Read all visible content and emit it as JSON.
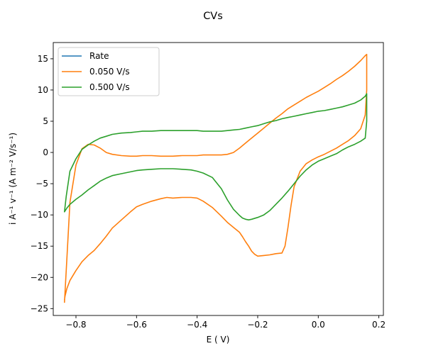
{
  "chart_data": {
    "type": "line",
    "title": "CVs",
    "xlabel": "E ( V)",
    "ylabel": "i A⁻¹ v⁻¹ (A m⁻² V/s⁻¹)",
    "xlim": [
      -0.875,
      0.215
    ],
    "ylim": [
      -26.1,
      17.6
    ],
    "x_ticks": [
      -0.8,
      -0.6,
      -0.4,
      -0.2,
      0.0,
      0.2
    ],
    "x_tick_labels": [
      "−0.8",
      "−0.6",
      "−0.4",
      "−0.2",
      "0.0",
      "0.2"
    ],
    "y_ticks": [
      -25,
      -20,
      -15,
      -10,
      -5,
      0,
      5,
      10,
      15
    ],
    "y_tick_labels": [
      "−25",
      "−20",
      "−15",
      "−10",
      "−5",
      "0",
      "5",
      "10",
      "15"
    ],
    "grid": false,
    "legend_position": "top-left",
    "series": [
      {
        "name": "Rate",
        "color": "#1f77b4",
        "x": [],
        "y": []
      },
      {
        "name": "0.050 V/s",
        "color": "#ff7f0e",
        "x": [
          -0.838,
          -0.83,
          -0.82,
          -0.8,
          -0.78,
          -0.76,
          -0.74,
          -0.72,
          -0.7,
          -0.68,
          -0.65,
          -0.62,
          -0.6,
          -0.58,
          -0.55,
          -0.52,
          -0.5,
          -0.48,
          -0.45,
          -0.42,
          -0.4,
          -0.38,
          -0.35,
          -0.32,
          -0.3,
          -0.28,
          -0.26,
          -0.24,
          -0.22,
          -0.2,
          -0.18,
          -0.16,
          -0.14,
          -0.12,
          -0.1,
          -0.08,
          -0.06,
          -0.04,
          -0.02,
          0.0,
          0.02,
          0.04,
          0.06,
          0.08,
          0.1,
          0.12,
          0.14,
          0.155,
          0.16,
          0.16,
          0.155,
          0.14,
          0.12,
          0.1,
          0.08,
          0.06,
          0.04,
          0.02,
          0.0,
          -0.02,
          -0.04,
          -0.06,
          -0.08,
          -0.09,
          -0.1,
          -0.11,
          -0.12,
          -0.14,
          -0.16,
          -0.18,
          -0.2,
          -0.21,
          -0.22,
          -0.23,
          -0.24,
          -0.25,
          -0.26,
          -0.28,
          -0.3,
          -0.32,
          -0.35,
          -0.38,
          -0.4,
          -0.42,
          -0.45,
          -0.48,
          -0.5,
          -0.52,
          -0.55,
          -0.58,
          -0.6,
          -0.62,
          -0.65,
          -0.68,
          -0.7,
          -0.72,
          -0.74,
          -0.76,
          -0.78,
          -0.8,
          -0.82,
          -0.83,
          -0.836,
          -0.838
        ],
        "y": [
          -24.0,
          -17.0,
          -8.0,
          -2.0,
          0.6,
          1.3,
          1.2,
          0.7,
          0.0,
          -0.3,
          -0.5,
          -0.6,
          -0.6,
          -0.5,
          -0.5,
          -0.6,
          -0.6,
          -0.6,
          -0.5,
          -0.5,
          -0.5,
          -0.4,
          -0.4,
          -0.4,
          -0.3,
          0.0,
          0.7,
          1.5,
          2.3,
          3.1,
          3.9,
          4.7,
          5.5,
          6.2,
          7.0,
          7.6,
          8.2,
          8.8,
          9.3,
          9.8,
          10.4,
          11.0,
          11.7,
          12.3,
          13.0,
          13.8,
          14.7,
          15.5,
          15.7,
          10.0,
          6.0,
          3.8,
          2.7,
          1.9,
          1.3,
          0.7,
          0.2,
          -0.3,
          -0.7,
          -1.2,
          -1.8,
          -3.0,
          -5.5,
          -8.5,
          -12.0,
          -15.0,
          -16.1,
          -16.2,
          -16.4,
          -16.5,
          -16.6,
          -16.3,
          -15.8,
          -15.0,
          -14.3,
          -13.5,
          -12.8,
          -12.0,
          -11.2,
          -10.2,
          -8.8,
          -7.8,
          -7.3,
          -7.2,
          -7.2,
          -7.3,
          -7.2,
          -7.4,
          -7.8,
          -8.3,
          -8.7,
          -9.5,
          -10.8,
          -12.1,
          -13.4,
          -14.6,
          -15.7,
          -16.5,
          -17.5,
          -18.9,
          -20.5,
          -21.8,
          -23.0,
          -23.6
        ]
      },
      {
        "name": "0.500 V/s",
        "color": "#2ca02c",
        "x": [
          -0.838,
          -0.832,
          -0.82,
          -0.8,
          -0.78,
          -0.76,
          -0.74,
          -0.72,
          -0.7,
          -0.68,
          -0.65,
          -0.62,
          -0.6,
          -0.58,
          -0.55,
          -0.52,
          -0.5,
          -0.48,
          -0.45,
          -0.42,
          -0.4,
          -0.38,
          -0.35,
          -0.32,
          -0.3,
          -0.28,
          -0.26,
          -0.24,
          -0.22,
          -0.2,
          -0.18,
          -0.16,
          -0.14,
          -0.12,
          -0.1,
          -0.08,
          -0.06,
          -0.04,
          -0.02,
          0.0,
          0.02,
          0.04,
          0.06,
          0.08,
          0.1,
          0.12,
          0.14,
          0.155,
          0.16,
          0.16,
          0.155,
          0.14,
          0.12,
          0.1,
          0.08,
          0.06,
          0.04,
          0.02,
          0.0,
          -0.02,
          -0.04,
          -0.06,
          -0.08,
          -0.1,
          -0.12,
          -0.14,
          -0.16,
          -0.18,
          -0.2,
          -0.22,
          -0.23,
          -0.24,
          -0.25,
          -0.26,
          -0.28,
          -0.3,
          -0.32,
          -0.35,
          -0.38,
          -0.4,
          -0.42,
          -0.45,
          -0.48,
          -0.5,
          -0.52,
          -0.55,
          -0.58,
          -0.6,
          -0.62,
          -0.65,
          -0.68,
          -0.7,
          -0.72,
          -0.74,
          -0.76,
          -0.78,
          -0.8,
          -0.82,
          -0.83,
          -0.838
        ],
        "y": [
          -9.5,
          -7.0,
          -3.0,
          -1.0,
          0.5,
          1.2,
          1.8,
          2.3,
          2.6,
          2.9,
          3.1,
          3.2,
          3.3,
          3.4,
          3.4,
          3.5,
          3.5,
          3.5,
          3.5,
          3.5,
          3.5,
          3.4,
          3.4,
          3.4,
          3.5,
          3.6,
          3.7,
          3.9,
          4.1,
          4.3,
          4.6,
          4.9,
          5.1,
          5.4,
          5.6,
          5.8,
          6.0,
          6.2,
          6.4,
          6.6,
          6.7,
          6.9,
          7.1,
          7.3,
          7.6,
          7.9,
          8.4,
          9.0,
          9.4,
          5.0,
          2.3,
          1.8,
          1.3,
          0.9,
          0.4,
          -0.2,
          -0.6,
          -1.0,
          -1.4,
          -2.0,
          -2.8,
          -3.8,
          -5.0,
          -6.2,
          -7.3,
          -8.3,
          -9.3,
          -10.0,
          -10.4,
          -10.7,
          -10.8,
          -10.7,
          -10.5,
          -10.1,
          -9.1,
          -7.6,
          -5.8,
          -4.0,
          -3.3,
          -3.0,
          -2.8,
          -2.7,
          -2.6,
          -2.6,
          -2.6,
          -2.7,
          -2.8,
          -2.9,
          -3.1,
          -3.4,
          -3.7,
          -4.1,
          -4.6,
          -5.3,
          -6.0,
          -6.8,
          -7.5,
          -8.3,
          -8.9,
          -9.5
        ]
      }
    ]
  }
}
